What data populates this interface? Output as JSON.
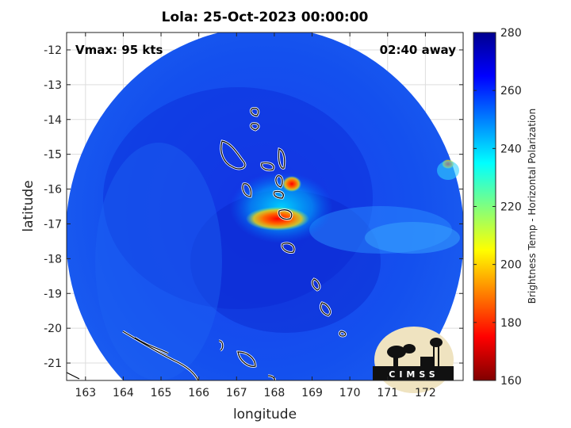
{
  "title": "Lola: 25-Oct-2023 00:00:00",
  "vmax_label": "Vmax: 95 kts",
  "distance_label": "02:40 away",
  "xlabel": "longitude",
  "ylabel": "latitude",
  "x_ticks": [
    "163",
    "164",
    "165",
    "166",
    "167",
    "168",
    "169",
    "170",
    "171",
    "172"
  ],
  "y_ticks": [
    "-12",
    "-13",
    "-14",
    "-15",
    "-16",
    "-17",
    "-18",
    "-19",
    "-20",
    "-21"
  ],
  "colorbar": {
    "label": "Brightness Temp - Horizontal Polarization",
    "ticks": [
      "280",
      "260",
      "240",
      "220",
      "200",
      "180",
      "160"
    ],
    "min": 160,
    "max": 280
  },
  "logo": {
    "text": "CIMSS"
  },
  "chart_data": {
    "type": "heatmap",
    "xlim": [
      162.5,
      173
    ],
    "ylim": [
      -21.5,
      -11.5
    ],
    "grid": true,
    "colormap": "jet",
    "clim": [
      160,
      280
    ]
  }
}
